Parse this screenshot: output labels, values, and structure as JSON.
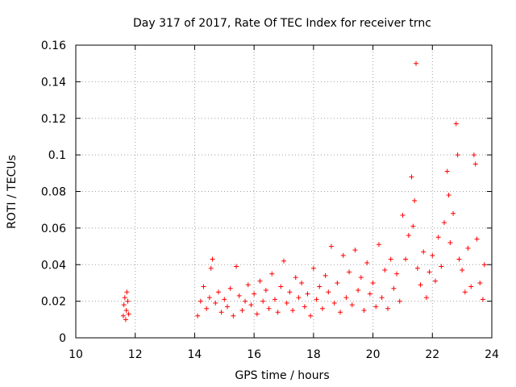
{
  "chart_data": {
    "type": "scatter",
    "title": "Day 317 of 2017, Rate Of TEC Index for receiver trnc",
    "xlabel": "GPS time / hours",
    "ylabel": "ROTI / TECUs",
    "xlim": [
      10,
      24
    ],
    "ylim": [
      0,
      0.16
    ],
    "xticks": [
      10,
      12,
      14,
      16,
      18,
      20,
      22,
      24
    ],
    "xtick_labels": [
      "10",
      "12",
      "14",
      "16",
      "18",
      "20",
      "22",
      "24"
    ],
    "yticks": [
      0,
      0.02,
      0.04,
      0.06,
      0.08,
      0.1,
      0.12,
      0.14,
      0.16
    ],
    "ytick_labels": [
      "0",
      "0.02",
      "0.04",
      "0.06",
      "0.08",
      "0.1",
      "0.12",
      "0.14",
      "0.16"
    ],
    "grid": true,
    "marker": "+",
    "color": "#ff0000",
    "series": [
      {
        "name": "ROTI",
        "points": [
          [
            11.6,
            0.012
          ],
          [
            11.62,
            0.018
          ],
          [
            11.65,
            0.022
          ],
          [
            11.68,
            0.01
          ],
          [
            11.7,
            0.015
          ],
          [
            11.72,
            0.025
          ],
          [
            11.75,
            0.02
          ],
          [
            11.78,
            0.013
          ],
          [
            14.1,
            0.012
          ],
          [
            14.2,
            0.02
          ],
          [
            14.3,
            0.028
          ],
          [
            14.4,
            0.016
          ],
          [
            14.5,
            0.022
          ],
          [
            14.55,
            0.038
          ],
          [
            14.6,
            0.043
          ],
          [
            14.7,
            0.019
          ],
          [
            14.8,
            0.025
          ],
          [
            14.9,
            0.014
          ],
          [
            15.0,
            0.021
          ],
          [
            15.1,
            0.017
          ],
          [
            15.2,
            0.027
          ],
          [
            15.3,
            0.012
          ],
          [
            15.4,
            0.039
          ],
          [
            15.5,
            0.023
          ],
          [
            15.6,
            0.015
          ],
          [
            15.7,
            0.02
          ],
          [
            15.8,
            0.029
          ],
          [
            15.9,
            0.018
          ],
          [
            16.0,
            0.024
          ],
          [
            16.1,
            0.013
          ],
          [
            16.2,
            0.031
          ],
          [
            16.3,
            0.02
          ],
          [
            16.4,
            0.026
          ],
          [
            16.5,
            0.016
          ],
          [
            16.6,
            0.035
          ],
          [
            16.7,
            0.021
          ],
          [
            16.8,
            0.014
          ],
          [
            16.9,
            0.028
          ],
          [
            17.0,
            0.042
          ],
          [
            17.1,
            0.019
          ],
          [
            17.2,
            0.025
          ],
          [
            17.3,
            0.015
          ],
          [
            17.4,
            0.033
          ],
          [
            17.5,
            0.022
          ],
          [
            17.6,
            0.03
          ],
          [
            17.7,
            0.017
          ],
          [
            17.8,
            0.024
          ],
          [
            17.9,
            0.012
          ],
          [
            18.0,
            0.038
          ],
          [
            18.1,
            0.021
          ],
          [
            18.2,
            0.028
          ],
          [
            18.3,
            0.016
          ],
          [
            18.4,
            0.034
          ],
          [
            18.5,
            0.025
          ],
          [
            18.6,
            0.05
          ],
          [
            18.7,
            0.019
          ],
          [
            18.8,
            0.03
          ],
          [
            18.9,
            0.014
          ],
          [
            19.0,
            0.045
          ],
          [
            19.1,
            0.022
          ],
          [
            19.2,
            0.036
          ],
          [
            19.3,
            0.018
          ],
          [
            19.4,
            0.048
          ],
          [
            19.5,
            0.026
          ],
          [
            19.6,
            0.033
          ],
          [
            19.7,
            0.015
          ],
          [
            19.8,
            0.041
          ],
          [
            19.9,
            0.024
          ],
          [
            20.0,
            0.03
          ],
          [
            20.1,
            0.017
          ],
          [
            20.2,
            0.051
          ],
          [
            20.3,
            0.022
          ],
          [
            20.4,
            0.037
          ],
          [
            20.5,
            0.016
          ],
          [
            20.6,
            0.043
          ],
          [
            20.7,
            0.027
          ],
          [
            20.8,
            0.035
          ],
          [
            20.9,
            0.02
          ],
          [
            21.0,
            0.067
          ],
          [
            21.1,
            0.043
          ],
          [
            21.2,
            0.056
          ],
          [
            21.3,
            0.088
          ],
          [
            21.35,
            0.061
          ],
          [
            21.4,
            0.075
          ],
          [
            21.45,
            0.15
          ],
          [
            21.5,
            0.038
          ],
          [
            21.6,
            0.029
          ],
          [
            21.7,
            0.047
          ],
          [
            21.8,
            0.022
          ],
          [
            21.9,
            0.036
          ],
          [
            22.0,
            0.045
          ],
          [
            22.1,
            0.031
          ],
          [
            22.2,
            0.055
          ],
          [
            22.3,
            0.039
          ],
          [
            22.4,
            0.063
          ],
          [
            22.5,
            0.091
          ],
          [
            22.55,
            0.078
          ],
          [
            22.6,
            0.052
          ],
          [
            22.7,
            0.068
          ],
          [
            22.8,
            0.117
          ],
          [
            22.85,
            0.1
          ],
          [
            22.9,
            0.043
          ],
          [
            23.0,
            0.037
          ],
          [
            23.1,
            0.025
          ],
          [
            23.2,
            0.049
          ],
          [
            23.3,
            0.028
          ],
          [
            23.4,
            0.1
          ],
          [
            23.45,
            0.095
          ],
          [
            23.5,
            0.054
          ],
          [
            23.6,
            0.03
          ],
          [
            23.7,
            0.021
          ],
          [
            23.75,
            0.04
          ]
        ]
      }
    ]
  }
}
